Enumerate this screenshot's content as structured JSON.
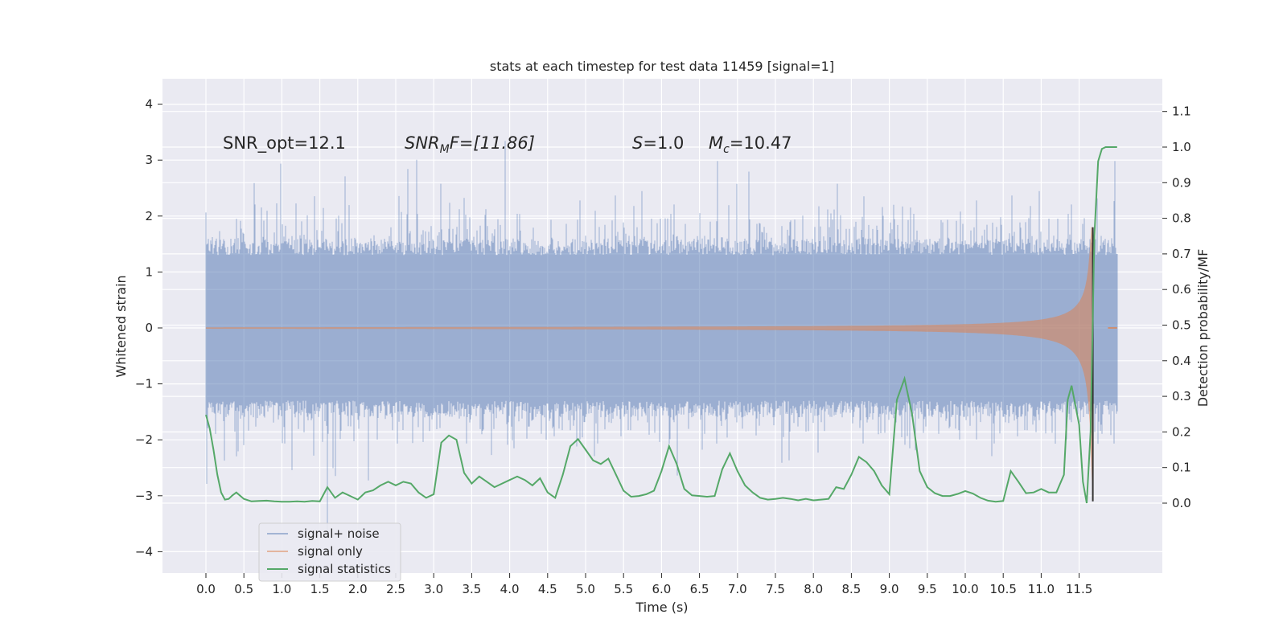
{
  "chart_data": {
    "type": "line",
    "title": "stats at each timestep for test data 11459 [signal=1]",
    "xlabel": "Time (s)",
    "ylabel_left": "Whitened strain",
    "ylabel_right": "Detection probability/MF",
    "xlim": [
      -0.6,
      12.6
    ],
    "ylim_left": [
      -4.4,
      4.45
    ],
    "ylim_right": [
      -0.2,
      1.18
    ],
    "grid": true,
    "legend_position": "lower-left",
    "x_ticks": [
      "0.0",
      "0.5",
      "1.0",
      "1.5",
      "2.0",
      "2.5",
      "3.0",
      "3.5",
      "4.0",
      "4.5",
      "5.0",
      "5.5",
      "6.0",
      "6.5",
      "7.0",
      "7.5",
      "8.0",
      "8.5",
      "9.0",
      "9.5",
      "10.0",
      "10.5",
      "11.0",
      "11.5"
    ],
    "y_ticks_left": [
      "−4",
      "−3",
      "−2",
      "−1",
      "0",
      "1",
      "2",
      "3",
      "4"
    ],
    "y_ticks_right": [
      "0.0",
      "0.1",
      "0.2",
      "0.3",
      "0.4",
      "0.5",
      "0.6",
      "0.7",
      "0.8",
      "0.9",
      "1.0",
      "1.1"
    ],
    "annotations": {
      "snr_opt": "SNR_opt=12.1",
      "snr_mf_main": "SNR",
      "snr_mf_sub": "M",
      "snr_mf_rest": "F=[11.86]",
      "s_italic": "S",
      "s_rest": "=1.0",
      "mc_italic": "M",
      "mc_sub": "c",
      "mc_rest": "=10.47"
    },
    "colors": {
      "plot_background": "#eaeaf2",
      "grid": "#ffffff",
      "signal_plus_noise": "#4c72b0",
      "signal_only": "#dd8452",
      "signal_statistics": "#55a868"
    },
    "series": [
      {
        "name": "signal+ noise",
        "description_sample_rate_hz": 2048,
        "duration_s": 12.0,
        "envelope_typical_abs": 1.5,
        "peak_max": 4.1,
        "peak_min": -4.0
      },
      {
        "name": "signal only",
        "chirp_end_s": 11.68,
        "end_amplitude_pos": 1.8,
        "end_amplitude_neg": -3.1
      },
      {
        "name": "signal statistics",
        "x": [
          0.0,
          0.05,
          0.1,
          0.15,
          0.2,
          0.25,
          0.3,
          0.35,
          0.4,
          0.5,
          0.6,
          0.7,
          0.8,
          0.9,
          1.0,
          1.1,
          1.2,
          1.3,
          1.4,
          1.5,
          1.6,
          1.7,
          1.8,
          1.9,
          2.0,
          2.1,
          2.2,
          2.3,
          2.4,
          2.5,
          2.6,
          2.7,
          2.8,
          2.9,
          3.0,
          3.1,
          3.2,
          3.3,
          3.4,
          3.5,
          3.6,
          3.7,
          3.8,
          3.9,
          4.0,
          4.1,
          4.2,
          4.3,
          4.4,
          4.5,
          4.6,
          4.7,
          4.8,
          4.9,
          5.0,
          5.1,
          5.2,
          5.3,
          5.4,
          5.5,
          5.6,
          5.7,
          5.8,
          5.9,
          6.0,
          6.1,
          6.2,
          6.3,
          6.4,
          6.5,
          6.6,
          6.7,
          6.8,
          6.9,
          7.0,
          7.1,
          7.2,
          7.3,
          7.4,
          7.5,
          7.6,
          7.7,
          7.8,
          7.9,
          8.0,
          8.1,
          8.2,
          8.3,
          8.4,
          8.5,
          8.6,
          8.7,
          8.8,
          8.9,
          9.0,
          9.1,
          9.2,
          9.3,
          9.4,
          9.5,
          9.6,
          9.7,
          9.8,
          9.9,
          10.0,
          10.1,
          10.2,
          10.3,
          10.4,
          10.5,
          10.6,
          10.7,
          10.8,
          10.9,
          11.0,
          11.1,
          11.2,
          11.3,
          11.35,
          11.4,
          11.5,
          11.55,
          11.6,
          11.65,
          11.7,
          11.75,
          11.8,
          11.85,
          11.9,
          12.0
        ],
        "values": [
          0.248,
          0.21,
          0.15,
          0.08,
          0.03,
          0.01,
          0.012,
          0.022,
          0.03,
          0.012,
          0.005,
          0.006,
          0.007,
          0.005,
          0.004,
          0.004,
          0.005,
          0.004,
          0.006,
          0.005,
          0.045,
          0.015,
          0.03,
          0.02,
          0.01,
          0.03,
          0.036,
          0.05,
          0.06,
          0.05,
          0.06,
          0.055,
          0.03,
          0.015,
          0.025,
          0.17,
          0.19,
          0.178,
          0.085,
          0.055,
          0.075,
          0.06,
          0.045,
          0.055,
          0.065,
          0.075,
          0.065,
          0.05,
          0.07,
          0.03,
          0.015,
          0.08,
          0.16,
          0.18,
          0.15,
          0.12,
          0.11,
          0.125,
          0.08,
          0.035,
          0.018,
          0.02,
          0.025,
          0.035,
          0.09,
          0.16,
          0.11,
          0.04,
          0.022,
          0.02,
          0.018,
          0.02,
          0.095,
          0.14,
          0.09,
          0.05,
          0.03,
          0.015,
          0.01,
          0.012,
          0.015,
          0.012,
          0.008,
          0.012,
          0.008,
          0.01,
          0.012,
          0.045,
          0.04,
          0.08,
          0.13,
          0.115,
          0.09,
          0.05,
          0.025,
          0.29,
          0.35,
          0.25,
          0.09,
          0.045,
          0.028,
          0.02,
          0.02,
          0.026,
          0.034,
          0.027,
          0.015,
          0.007,
          0.004,
          0.006,
          0.09,
          0.06,
          0.028,
          0.03,
          0.04,
          0.03,
          0.03,
          0.08,
          0.29,
          0.33,
          0.22,
          0.06,
          0.0,
          0.2,
          0.75,
          0.96,
          0.995,
          1.0,
          1.0,
          1.0
        ]
      }
    ],
    "legend": [
      {
        "label": "signal+ noise",
        "color": "#4c72b0"
      },
      {
        "label": "signal only",
        "color": "#dd8452"
      },
      {
        "label": "signal statistics",
        "color": "#55a868"
      }
    ]
  }
}
